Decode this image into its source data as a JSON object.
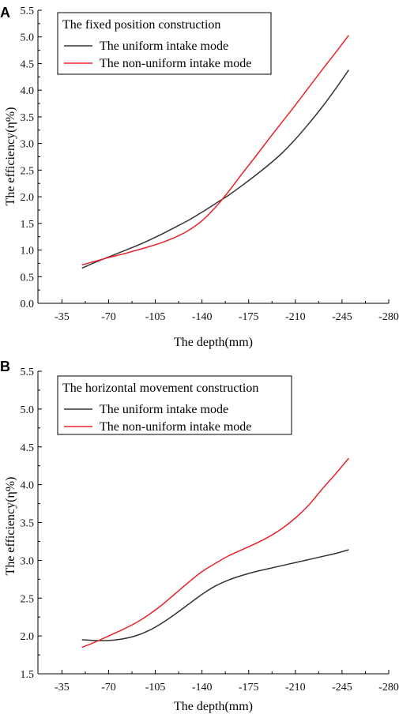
{
  "chart_data": [
    {
      "panel": "A",
      "type": "line",
      "xlabel": "The depth(mm)",
      "ylabel": "The efficiency(η%)",
      "legend_title": "The fixed position construction",
      "legend_position": "top-left",
      "x_ticks": [
        "-35",
        "-70",
        "-105",
        "-140",
        "-175",
        "-210",
        "-245",
        "-280"
      ],
      "y_ticks": [
        "0.0",
        "0.5",
        "1.0",
        "1.5",
        "2.0",
        "2.5",
        "3.0",
        "3.5",
        "4.0",
        "4.5",
        "5.0",
        "5.5"
      ],
      "xlim": [
        -17,
        -280
      ],
      "ylim": [
        0,
        5.5
      ],
      "grid": false,
      "series": [
        {
          "name": "The uniform intake mode",
          "color": "#333333",
          "x": [
            -50,
            -60,
            -70,
            -80,
            -90,
            -100,
            -110,
            -120,
            -130,
            -140,
            -150,
            -160,
            -170,
            -180,
            -190,
            -200,
            -210,
            -220,
            -230,
            -240,
            -250
          ],
          "y": [
            0.66,
            0.77,
            0.87,
            0.97,
            1.07,
            1.18,
            1.3,
            1.43,
            1.56,
            1.71,
            1.87,
            2.03,
            2.21,
            2.4,
            2.6,
            2.82,
            3.08,
            3.37,
            3.68,
            4.02,
            4.38
          ]
        },
        {
          "name": "The non-uniform intake mode",
          "color": "#e8232a",
          "x": [
            -50,
            -60,
            -70,
            -80,
            -90,
            -100,
            -110,
            -120,
            -130,
            -140,
            -150,
            -160,
            -170,
            -180,
            -190,
            -200,
            -210,
            -220,
            -230,
            -240,
            -250
          ],
          "y": [
            0.72,
            0.79,
            0.86,
            0.92,
            0.99,
            1.06,
            1.14,
            1.24,
            1.37,
            1.55,
            1.8,
            2.1,
            2.43,
            2.75,
            3.08,
            3.4,
            3.72,
            4.05,
            4.38,
            4.7,
            5.03
          ]
        }
      ]
    },
    {
      "panel": "B",
      "type": "line",
      "xlabel": "The depth(mm)",
      "ylabel": "The efficiency(η%)",
      "legend_title": "The horizontal movement construction",
      "legend_position": "top-left",
      "x_ticks": [
        "-35",
        "-70",
        "-105",
        "-140",
        "-175",
        "-210",
        "-245",
        "-280"
      ],
      "y_ticks": [
        "1.5",
        "2.0",
        "2.5",
        "3.0",
        "3.5",
        "4.0",
        "4.5",
        "5.0",
        "5.5"
      ],
      "xlim": [
        -17,
        -280
      ],
      "ylim": [
        1.5,
        5.5
      ],
      "grid": false,
      "series": [
        {
          "name": "The uniform intake mode",
          "color": "#333333",
          "x": [
            -50,
            -60,
            -70,
            -80,
            -90,
            -100,
            -110,
            -120,
            -130,
            -140,
            -150,
            -160,
            -170,
            -180,
            -190,
            -200,
            -210,
            -220,
            -230,
            -240,
            -250
          ],
          "y": [
            1.95,
            1.94,
            1.94,
            1.96,
            2.0,
            2.07,
            2.17,
            2.29,
            2.42,
            2.55,
            2.66,
            2.74,
            2.8,
            2.85,
            2.89,
            2.93,
            2.97,
            3.01,
            3.05,
            3.09,
            3.14
          ]
        },
        {
          "name": "The non-uniform intake mode",
          "color": "#e8232a",
          "x": [
            -50,
            -60,
            -70,
            -80,
            -90,
            -100,
            -110,
            -120,
            -130,
            -140,
            -150,
            -160,
            -170,
            -180,
            -190,
            -200,
            -210,
            -220,
            -230,
            -240,
            -250
          ],
          "y": [
            1.85,
            1.92,
            2.0,
            2.08,
            2.17,
            2.28,
            2.41,
            2.56,
            2.71,
            2.85,
            2.96,
            3.06,
            3.14,
            3.22,
            3.31,
            3.42,
            3.56,
            3.73,
            3.94,
            4.14,
            4.35
          ]
        }
      ]
    }
  ]
}
